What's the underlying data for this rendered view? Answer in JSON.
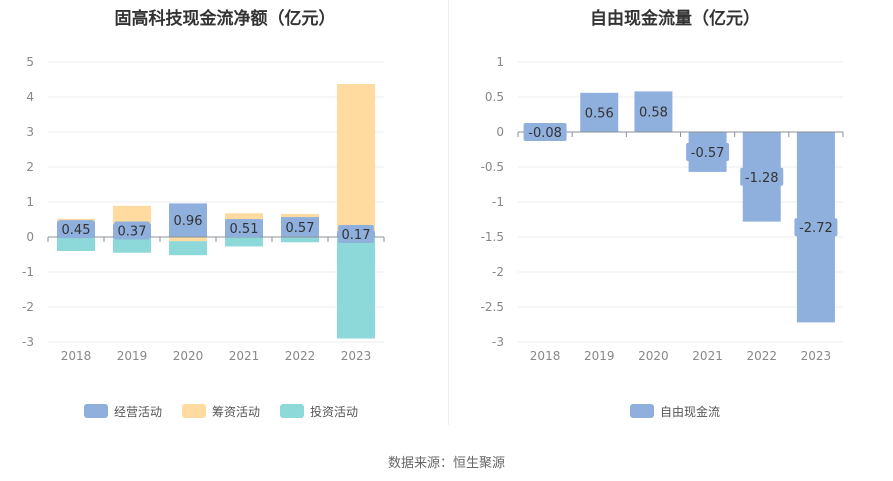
{
  "chart_data": [
    {
      "type": "bar",
      "stacked": true,
      "title": "固高科技现金流净额（亿元）",
      "categories": [
        "2018",
        "2019",
        "2020",
        "2021",
        "2022",
        "2023"
      ],
      "ylim": [
        -3,
        5
      ],
      "yticks": [
        "5",
        "4",
        "3",
        "2",
        "1",
        "0",
        "-1",
        "-2",
        "-3"
      ],
      "legend_position": "bottom",
      "series": [
        {
          "name": "经营活动",
          "color": "#8fafdd",
          "values": [
            0.45,
            0.37,
            0.96,
            0.51,
            0.57,
            0.17
          ]
        },
        {
          "name": "筹资活动",
          "color": "#ffdba0",
          "values": [
            0.07,
            0.52,
            -0.12,
            0.17,
            0.09,
            4.2
          ]
        },
        {
          "name": "投资活动",
          "color": "#8dd8d8",
          "values": [
            -0.4,
            -0.45,
            -0.4,
            -0.27,
            -0.15,
            -2.9
          ]
        }
      ],
      "data_labels": [
        "0.45",
        "0.37",
        "0.96",
        "0.51",
        "0.57",
        "0.17"
      ]
    },
    {
      "type": "bar",
      "title": "自由现金流量（亿元）",
      "categories": [
        "2018",
        "2019",
        "2020",
        "2021",
        "2022",
        "2023"
      ],
      "ylim": [
        -3,
        1
      ],
      "yticks": [
        "1",
        "0.5",
        "0",
        "-0.5",
        "-1",
        "-1.5",
        "-2",
        "-2.5",
        "-3"
      ],
      "legend_position": "bottom",
      "series": [
        {
          "name": "自由现金流",
          "color": "#8fafdd",
          "values": [
            -0.08,
            0.56,
            0.58,
            -0.57,
            -1.28,
            -2.72
          ]
        }
      ],
      "data_labels": [
        "-0.08",
        "0.56",
        "0.58",
        "-0.57",
        "-1.28",
        "-2.72"
      ]
    }
  ],
  "source_text": "数据来源：恒生聚源"
}
